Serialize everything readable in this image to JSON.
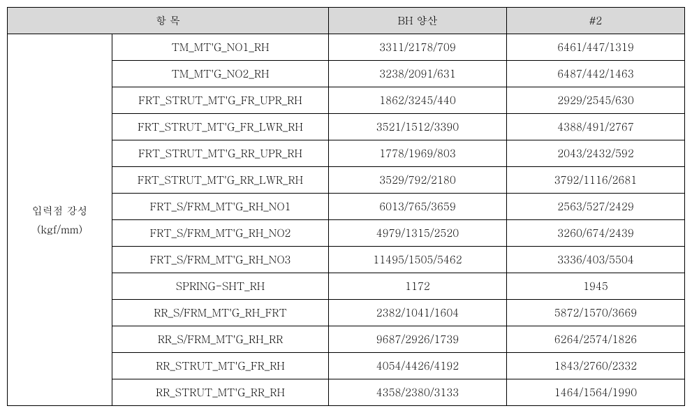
{
  "table": {
    "headers": {
      "category_item": "항 목",
      "bh": "BH 양산",
      "num2": "#2"
    },
    "row_label_line1": "입력점 강성",
    "row_label_line2": "(kgf/mm)",
    "rows": [
      {
        "item": "TM_MT'G_NO1_RH",
        "bh": "3311/2178/709",
        "num2": "6461/447/1319"
      },
      {
        "item": "TM_MT'G_NO2_RH",
        "bh": "3238/2091/631",
        "num2": "6487/442/1463"
      },
      {
        "item": "FRT_STRUT_MT'G_FR_UPR_RH",
        "bh": "1862/3245/440",
        "num2": "2929/2545/630"
      },
      {
        "item": "FRT_STRUT_MT'G_FR_LWR_RH",
        "bh": "3521/1512/3390",
        "num2": "4388/491/2767"
      },
      {
        "item": "FRT_STRUT_MT'G_RR_UPR_RH",
        "bh": "1778/1969/803",
        "num2": "2043/2432/592"
      },
      {
        "item": "FRT_STRUT_MT'G_RR_LWR_RH",
        "bh": "3529/792/2180",
        "num2": "3792/1116/2681"
      },
      {
        "item": "FRT_S/FRM_MT'G_RH_NO1",
        "bh": "6013/765/3659",
        "num2": "2563/527/2429"
      },
      {
        "item": "FRT_S/FRM_MT'G_RH_NO2",
        "bh": "4979/1315/2520",
        "num2": "3260/674/2439"
      },
      {
        "item": "FRT_S/FRM_MT'G_RH_NO3",
        "bh": "11495/1505/5462",
        "num2": "3336/403/5504"
      },
      {
        "item": "SPRING-SHT_RH",
        "bh": "1172",
        "num2": "1945"
      },
      {
        "item": "RR_S/FRM_MT'G_RH_FRT",
        "bh": "2382/1041/1604",
        "num2": "5872/1570/3669"
      },
      {
        "item": "RR_S/FRM_MT'G_RH_RR",
        "bh": "9687/2926/1739",
        "num2": "6264/2574/1826"
      },
      {
        "item": "RR_STRUT_MT'G_FR_RH",
        "bh": "4054/4426/4192",
        "num2": "1843/2760/2332"
      },
      {
        "item": "RR_STRUT_MT'G_RR_RH",
        "bh": "4358/2380/3133",
        "num2": "1464/1564/1990"
      }
    ]
  },
  "styling": {
    "header_bg": "#d9d9d9",
    "border_color": "#000000",
    "font_size": 15,
    "row_count": 14
  }
}
